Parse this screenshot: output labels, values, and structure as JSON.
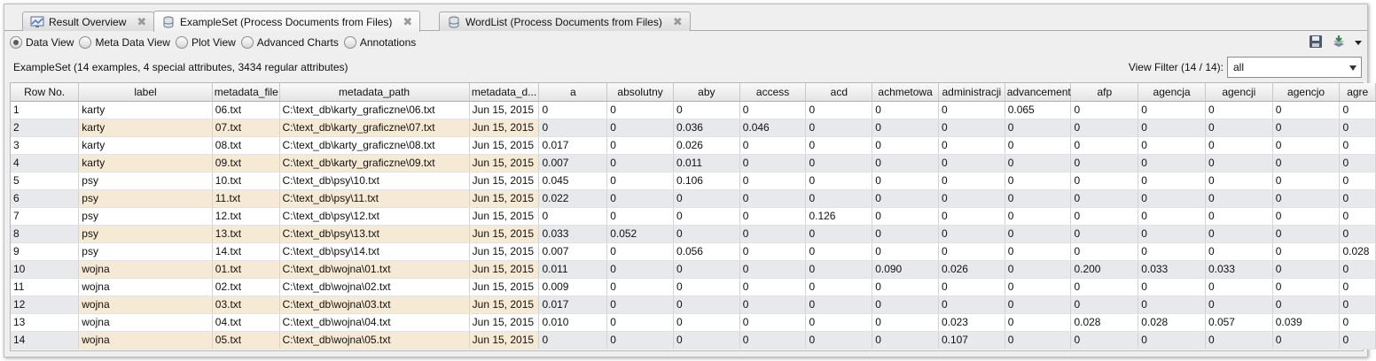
{
  "tabs": [
    {
      "label": "Result Overview",
      "icon": "chart-icon",
      "active": false
    },
    {
      "label": "ExampleSet (Process Documents from Files)",
      "icon": "database-icon",
      "active": true
    },
    {
      "label": "WordList (Process Documents from Files)",
      "icon": "database-icon",
      "active": false
    }
  ],
  "views": [
    {
      "label": "Data View",
      "selected": true
    },
    {
      "label": "Meta Data View",
      "selected": false
    },
    {
      "label": "Plot View",
      "selected": false
    },
    {
      "label": "Advanced Charts",
      "selected": false
    },
    {
      "label": "Annotations",
      "selected": false
    }
  ],
  "info": "ExampleSet (14 examples, 4 special attributes, 3434 regular attributes)",
  "filter": {
    "label": "View Filter (14 / 14):",
    "value": "all"
  },
  "columns": [
    "Row No.",
    "label",
    "metadata_file",
    "metadata_path",
    "metadata_d...",
    "a",
    "absolutny",
    "aby",
    "access",
    "acd",
    "achmetowa",
    "administracji",
    "advancement",
    "afp",
    "agencja",
    "agencji",
    "agencjo",
    "agre"
  ],
  "rows": [
    [
      "1",
      "karty",
      "06.txt",
      "C:\\text_db\\karty_graficzne\\06.txt",
      "Jun 15, 2015",
      "0",
      "0",
      "0",
      "0",
      "0",
      "0",
      "0",
      "0.065",
      "0",
      "0",
      "0",
      "0",
      "0"
    ],
    [
      "2",
      "karty",
      "07.txt",
      "C:\\text_db\\karty_graficzne\\07.txt",
      "Jun 15, 2015",
      "0",
      "0",
      "0.036",
      "0.046",
      "0",
      "0",
      "0",
      "0",
      "0",
      "0",
      "0",
      "0",
      "0"
    ],
    [
      "3",
      "karty",
      "08.txt",
      "C:\\text_db\\karty_graficzne\\08.txt",
      "Jun 15, 2015",
      "0.017",
      "0",
      "0.026",
      "0",
      "0",
      "0",
      "0",
      "0",
      "0",
      "0",
      "0",
      "0",
      "0"
    ],
    [
      "4",
      "karty",
      "09.txt",
      "C:\\text_db\\karty_graficzne\\09.txt",
      "Jun 15, 2015",
      "0.007",
      "0",
      "0.011",
      "0",
      "0",
      "0",
      "0",
      "0",
      "0",
      "0",
      "0",
      "0",
      "0"
    ],
    [
      "5",
      "psy",
      "10.txt",
      "C:\\text_db\\psy\\10.txt",
      "Jun 15, 2015",
      "0.045",
      "0",
      "0.106",
      "0",
      "0",
      "0",
      "0",
      "0",
      "0",
      "0",
      "0",
      "0",
      "0"
    ],
    [
      "6",
      "psy",
      "11.txt",
      "C:\\text_db\\psy\\11.txt",
      "Jun 15, 2015",
      "0.022",
      "0",
      "0",
      "0",
      "0",
      "0",
      "0",
      "0",
      "0",
      "0",
      "0",
      "0",
      "0"
    ],
    [
      "7",
      "psy",
      "12.txt",
      "C:\\text_db\\psy\\12.txt",
      "Jun 15, 2015",
      "0",
      "0",
      "0",
      "0",
      "0.126",
      "0",
      "0",
      "0",
      "0",
      "0",
      "0",
      "0",
      "0"
    ],
    [
      "8",
      "psy",
      "13.txt",
      "C:\\text_db\\psy\\13.txt",
      "Jun 15, 2015",
      "0.033",
      "0.052",
      "0",
      "0",
      "0",
      "0",
      "0",
      "0",
      "0",
      "0",
      "0",
      "0",
      "0"
    ],
    [
      "9",
      "psy",
      "14.txt",
      "C:\\text_db\\psy\\14.txt",
      "Jun 15, 2015",
      "0.007",
      "0",
      "0.056",
      "0",
      "0",
      "0",
      "0",
      "0",
      "0",
      "0",
      "0",
      "0",
      "0.028"
    ],
    [
      "10",
      "wojna",
      "01.txt",
      "C:\\text_db\\wojna\\01.txt",
      "Jun 15, 2015",
      "0.011",
      "0",
      "0",
      "0",
      "0",
      "0.090",
      "0.026",
      "0",
      "0.200",
      "0.033",
      "0.033",
      "0",
      "0"
    ],
    [
      "11",
      "wojna",
      "02.txt",
      "C:\\text_db\\wojna\\02.txt",
      "Jun 15, 2015",
      "0.009",
      "0",
      "0",
      "0",
      "0",
      "0",
      "0",
      "0",
      "0",
      "0",
      "0",
      "0",
      "0"
    ],
    [
      "12",
      "wojna",
      "03.txt",
      "C:\\text_db\\wojna\\03.txt",
      "Jun 15, 2015",
      "0.017",
      "0",
      "0",
      "0",
      "0",
      "0",
      "0",
      "0",
      "0",
      "0",
      "0",
      "0",
      "0"
    ],
    [
      "13",
      "wojna",
      "04.txt",
      "C:\\text_db\\wojna\\04.txt",
      "Jun 15, 2015",
      "0.010",
      "0",
      "0",
      "0",
      "0",
      "0",
      "0.023",
      "0",
      "0.028",
      "0.028",
      "0.057",
      "0.039",
      "0"
    ],
    [
      "14",
      "wojna",
      "05.txt",
      "C:\\text_db\\wojna\\05.txt",
      "Jun 15, 2015",
      "0",
      "0",
      "0",
      "0",
      "0",
      "0",
      "0.107",
      "0",
      "0",
      "0",
      "0",
      "0",
      "0"
    ]
  ],
  "colors": {
    "special_column_tint": "#f7ead5",
    "row_stripe": "#e8e9ec"
  }
}
